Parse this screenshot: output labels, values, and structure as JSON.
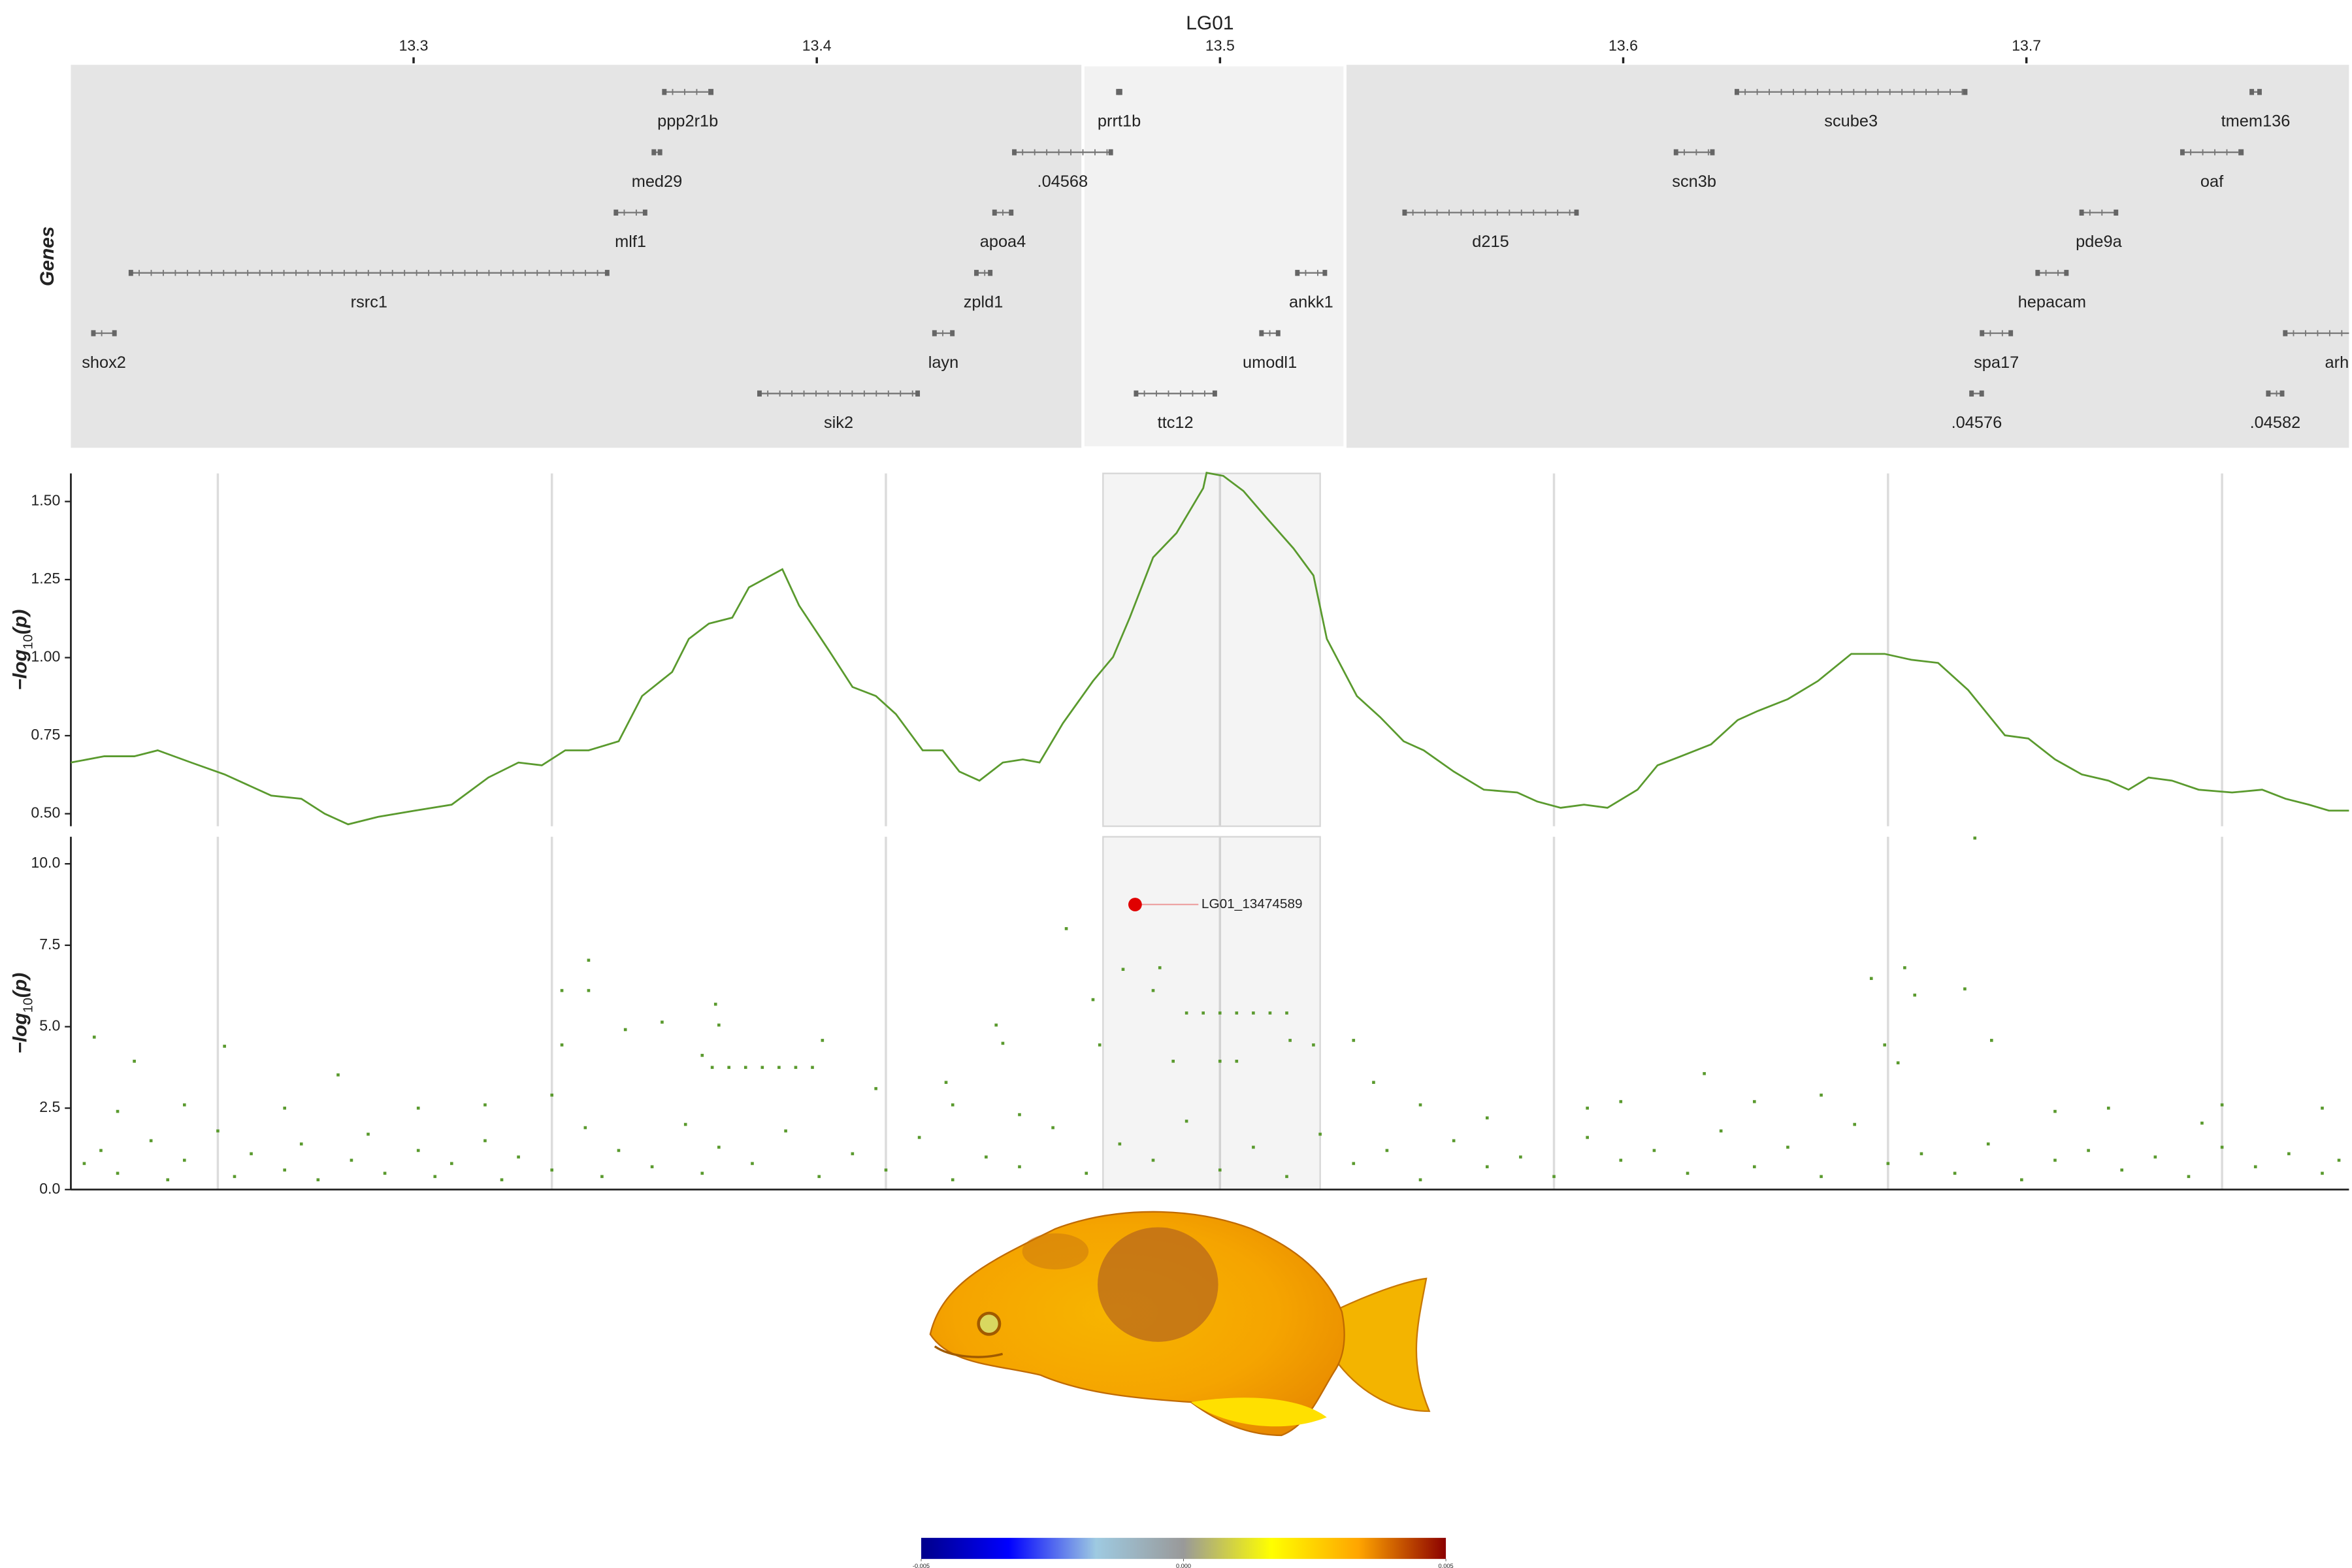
{
  "chart_data": [
    {
      "type": "gene-track",
      "title": "LG01",
      "ylabel": "Genes",
      "xlim": [
        13.215,
        13.78
      ],
      "xticks": [
        13.3,
        13.4,
        13.5,
        13.6,
        13.7
      ],
      "highlight": [
        13.466,
        13.531
      ],
      "color": "#777777",
      "rows": [
        [
          {
            "name": "ppp2r1b",
            "start": 13.362,
            "end": 13.374
          },
          {
            "name": "prrt1b",
            "start": 13.4746,
            "end": 13.4754
          },
          {
            "name": "scube3",
            "start": 13.628,
            "end": 13.685
          },
          {
            "name": "tmem136",
            "start": 13.7557,
            "end": 13.758
          }
        ],
        [
          {
            "name": "med29",
            "start": 13.3594,
            "end": 13.3613
          },
          {
            "name": ".04568",
            "start": 13.4488,
            "end": 13.4731
          },
          {
            "name": "scn3b",
            "start": 13.6129,
            "end": 13.6223
          },
          {
            "name": "oaf",
            "start": 13.7385,
            "end": 13.7535
          }
        ],
        [
          {
            "name": "mlf1",
            "start": 13.35,
            "end": 13.3576
          },
          {
            "name": "apoa4",
            "start": 13.4439,
            "end": 13.4484
          },
          {
            "name": "d215",
            "start": 13.5456,
            "end": 13.5886
          },
          {
            "name": "pde9a",
            "start": 13.7135,
            "end": 13.7224
          }
        ],
        [
          {
            "name": "rsrc1",
            "start": 13.2297,
            "end": 13.3482
          },
          {
            "name": "zpld1",
            "start": 13.4394,
            "end": 13.4432
          },
          {
            "name": "ankk1",
            "start": 13.519,
            "end": 13.5262
          },
          {
            "name": "hepacam",
            "start": 13.7026,
            "end": 13.7101
          }
        ],
        [
          {
            "name": "shox2",
            "start": 13.2204,
            "end": 13.226
          },
          {
            "name": "layn",
            "start": 13.429,
            "end": 13.4338
          },
          {
            "name": "umodl1",
            "start": 13.5101,
            "end": 13.5146
          },
          {
            "name": "spa17",
            "start": 13.6888,
            "end": 13.6963
          },
          {
            "name": "arh",
            "start": 13.764,
            "end": 13.79
          }
        ],
        [
          {
            "name": "sik2",
            "start": 13.3856,
            "end": 13.4252
          },
          {
            "name": "ttc12",
            "start": 13.479,
            "end": 13.4989
          },
          {
            "name": ".04576",
            "start": 13.6862,
            "end": 13.6891
          },
          {
            "name": ".04582",
            "start": 13.7598,
            "end": 13.7636
          }
        ]
      ]
    },
    {
      "type": "line",
      "ylabel": [
        "−log",
        "10",
        "(p)"
      ],
      "color": "#5a9a2e",
      "xlim": [
        13.156,
        13.838
      ],
      "xgrid": [
        13.2,
        13.3,
        13.4,
        13.5,
        13.6,
        13.7,
        13.8
      ],
      "highlight": [
        13.465,
        13.53
      ],
      "ylim": [
        0.46,
        1.59
      ],
      "yticks": [
        {
          "value": 0.5,
          "label": "0.50"
        },
        0.75,
        {
          "value": 1.0,
          "label": "1.00"
        },
        1.25,
        {
          "value": 1.5,
          "label": "1.50"
        }
      ],
      "x": [
        13.156,
        13.166,
        13.175,
        13.182,
        13.192,
        13.202,
        13.216,
        13.225,
        13.232,
        13.239,
        13.248,
        13.259,
        13.27,
        13.281,
        13.29,
        13.297,
        13.304,
        13.311,
        13.32,
        13.327,
        13.336,
        13.341,
        13.347,
        13.354,
        13.359,
        13.369,
        13.374,
        13.383,
        13.39,
        13.397,
        13.403,
        13.411,
        13.417,
        13.422,
        13.428,
        13.435,
        13.441,
        13.446,
        13.453,
        13.462,
        13.468,
        13.473,
        13.48,
        13.487,
        13.495,
        13.496,
        13.501,
        13.507,
        13.514,
        13.522,
        13.528,
        13.532,
        13.541,
        13.548,
        13.555,
        13.561,
        13.57,
        13.579,
        13.589,
        13.595,
        13.602,
        13.609,
        13.616,
        13.625,
        13.631,
        13.638,
        13.647,
        13.655,
        13.661,
        13.67,
        13.679,
        13.689,
        13.699,
        13.707,
        13.715,
        13.724,
        13.735,
        13.742,
        13.75,
        13.758,
        13.766,
        13.772,
        13.778,
        13.785,
        13.793,
        13.803,
        13.812,
        13.819,
        13.826,
        13.832,
        13.838
      ],
      "values": [
        0.664,
        0.684,
        0.684,
        0.703,
        0.664,
        0.626,
        0.558,
        0.548,
        0.5,
        0.466,
        0.49,
        0.51,
        0.529,
        0.616,
        0.664,
        0.655,
        0.703,
        0.703,
        0.732,
        0.877,
        0.954,
        1.06,
        1.109,
        1.128,
        1.225,
        1.283,
        1.167,
        1.022,
        0.906,
        0.877,
        0.819,
        0.703,
        0.703,
        0.635,
        0.606,
        0.664,
        0.674,
        0.664,
        0.79,
        0.925,
        1.002,
        1.128,
        1.321,
        1.399,
        1.543,
        1.592,
        1.582,
        1.534,
        1.447,
        1.35,
        1.263,
        1.06,
        0.877,
        0.809,
        0.732,
        0.703,
        0.635,
        0.577,
        0.568,
        0.539,
        0.519,
        0.529,
        0.519,
        0.577,
        0.655,
        0.684,
        0.722,
        0.8,
        0.829,
        0.867,
        0.925,
        1.012,
        1.012,
        0.993,
        0.983,
        0.896,
        0.751,
        0.741,
        0.674,
        0.626,
        0.606,
        0.577,
        0.616,
        0.606,
        0.577,
        0.568,
        0.577,
        0.548,
        0.529,
        0.51,
        0.51
      ]
    },
    {
      "type": "scatter",
      "ylabel": [
        "−log",
        "10",
        "(p)"
      ],
      "color": "#5a9a2e",
      "xlim": [
        13.156,
        13.838
      ],
      "xgrid": [
        13.2,
        13.3,
        13.4,
        13.5,
        13.6,
        13.7,
        13.8
      ],
      "highlight": [
        13.465,
        13.53
      ],
      "ylim": [
        0,
        10.83
      ],
      "yticks": [
        {
          "value": 0,
          "label": "0.0"
        },
        2.5,
        {
          "value": 5,
          "label": "5.0"
        },
        7.5,
        {
          "value": 10,
          "label": "10.0"
        }
      ],
      "x": [
        13.163,
        13.175,
        13.202,
        13.236,
        13.303,
        13.311,
        13.311,
        13.303,
        13.322,
        13.333,
        13.349,
        13.35,
        13.345,
        13.348,
        13.353,
        13.358,
        13.363,
        13.368,
        13.373,
        13.378,
        13.381,
        13.397,
        13.418,
        13.433,
        13.435,
        13.454,
        13.462,
        13.464,
        13.471,
        13.482,
        13.48,
        13.49,
        13.495,
        13.5,
        13.505,
        13.51,
        13.515,
        13.52,
        13.486,
        13.5,
        13.505,
        13.521,
        13.528,
        13.54,
        13.546,
        13.645,
        13.695,
        13.705,
        13.708,
        13.699,
        13.703,
        13.723,
        13.726,
        13.731,
        13.766,
        13.794,
        13.17,
        13.19,
        13.22,
        13.26,
        13.28,
        13.3,
        13.42,
        13.44,
        13.56,
        13.58,
        13.61,
        13.62,
        13.66,
        13.68,
        13.75,
        13.8,
        13.83,
        13.16,
        13.165,
        13.17,
        13.18,
        13.185,
        13.19,
        13.2,
        13.205,
        13.21,
        13.22,
        13.225,
        13.23,
        13.24,
        13.245,
        13.25,
        13.26,
        13.265,
        13.27,
        13.28,
        13.285,
        13.29,
        13.3,
        13.31,
        13.315,
        13.32,
        13.33,
        13.34,
        13.345,
        13.35,
        13.36,
        13.37,
        13.38,
        13.39,
        13.4,
        13.41,
        13.42,
        13.43,
        13.44,
        13.45,
        13.46,
        13.47,
        13.48,
        13.49,
        13.5,
        13.51,
        13.52,
        13.53,
        13.54,
        13.55,
        13.56,
        13.57,
        13.58,
        13.59,
        13.6,
        13.61,
        13.62,
        13.63,
        13.64,
        13.65,
        13.66,
        13.67,
        13.68,
        13.69,
        13.7,
        13.71,
        13.72,
        13.73,
        13.74,
        13.75,
        13.76,
        13.77,
        13.78,
        13.79,
        13.8,
        13.81,
        13.82,
        13.83,
        13.835
      ],
      "values": [
        4.68,
        3.94,
        4.4,
        3.52,
        6.11,
        7.04,
        6.11,
        4.44,
        4.91,
        5.14,
        5.69,
        5.05,
        4.12,
        3.75,
        3.75,
        3.75,
        3.75,
        3.75,
        3.75,
        3.75,
        4.58,
        3.1,
        3.29,
        5.05,
        4.49,
        8.01,
        5.83,
        4.44,
        6.76,
        6.81,
        6.11,
        5.42,
        5.42,
        5.42,
        5.42,
        5.42,
        5.42,
        5.42,
        3.94,
        3.94,
        3.94,
        4.58,
        4.44,
        4.58,
        3.29,
        3.56,
        6.48,
        6.81,
        5.97,
        4.44,
        3.89,
        6.16,
        10.79,
        4.58,
        2.5,
        2.04,
        2.4,
        2.6,
        2.5,
        2.5,
        2.6,
        2.9,
        2.6,
        2.3,
        2.6,
        2.2,
        2.5,
        2.7,
        2.7,
        2.9,
        2.4,
        2.6,
        2.5,
        0.8,
        1.2,
        0.5,
        1.5,
        0.3,
        0.9,
        1.8,
        0.4,
        1.1,
        0.6,
        1.4,
        0.3,
        0.9,
        1.7,
        0.5,
        1.2,
        0.4,
        0.8,
        1.5,
        0.3,
        1.0,
        0.6,
        1.9,
        0.4,
        1.2,
        0.7,
        2.0,
        0.5,
        1.3,
        0.8,
        1.8,
        0.4,
        1.1,
        0.6,
        1.6,
        0.3,
        1.0,
        0.7,
        1.9,
        0.5,
        1.4,
        0.9,
        2.1,
        0.6,
        1.3,
        0.4,
        1.7,
        0.8,
        1.2,
        0.3,
        1.5,
        0.7,
        1.0,
        0.4,
        1.6,
        0.9,
        1.2,
        0.5,
        1.8,
        0.7,
        1.3,
        0.4,
        2.0,
        0.8,
        1.1,
        0.5,
        1.4,
        0.3,
        0.9,
        1.2,
        0.6,
        1.0,
        0.4,
        1.3,
        0.7,
        1.1,
        0.5,
        0.9
      ],
      "highlight_point": {
        "x": 13.4746,
        "value": 8.75,
        "label": "LG01_13474589",
        "color": "#e00000"
      }
    },
    {
      "type": "colorbar",
      "xlim": [
        -0.005,
        0.005
      ],
      "xticks": [
        -0.005,
        {
          "value": 0,
          "label": "0.000"
        },
        0.005
      ],
      "colors": [
        "#00008b",
        "#0000ff",
        "#9ecae1",
        "#999999",
        "#ffff00",
        "#ffa500",
        "#8b0000"
      ]
    }
  ]
}
